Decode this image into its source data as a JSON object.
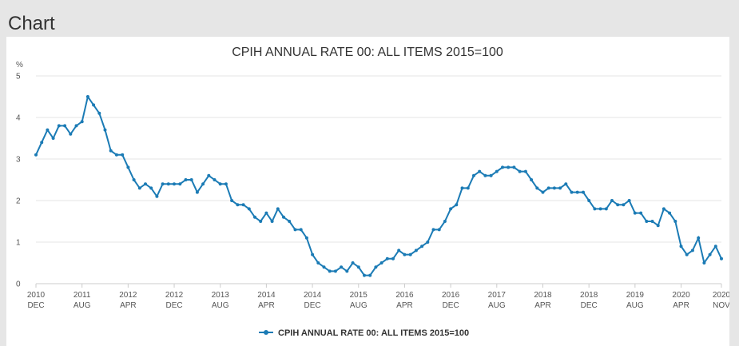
{
  "page": {
    "heading": "Chart"
  },
  "colors": {
    "series": "#1b7bb5",
    "grid": "#e6e6e6",
    "axis": "#cccccc"
  },
  "chart_data": {
    "type": "line",
    "title": "CPIH ANNUAL RATE 00: ALL ITEMS 2015=100",
    "ylabel": "%",
    "ylim": [
      0,
      5
    ],
    "yticks": [
      0,
      1,
      2,
      3,
      4,
      5
    ],
    "x_start": "2010 DEC",
    "x_end": "2020 NOV",
    "xticks": [
      {
        "top": "2010",
        "bottom": "DEC",
        "index": 0
      },
      {
        "top": "2011",
        "bottom": "AUG",
        "index": 8
      },
      {
        "top": "2012",
        "bottom": "APR",
        "index": 16
      },
      {
        "top": "2012",
        "bottom": "DEC",
        "index": 24
      },
      {
        "top": "2013",
        "bottom": "AUG",
        "index": 32
      },
      {
        "top": "2014",
        "bottom": "APR",
        "index": 40
      },
      {
        "top": "2014",
        "bottom": "DEC",
        "index": 48
      },
      {
        "top": "2015",
        "bottom": "AUG",
        "index": 56
      },
      {
        "top": "2016",
        "bottom": "APR",
        "index": 64
      },
      {
        "top": "2016",
        "bottom": "DEC",
        "index": 72
      },
      {
        "top": "2017",
        "bottom": "AUG",
        "index": 80
      },
      {
        "top": "2018",
        "bottom": "APR",
        "index": 88
      },
      {
        "top": "2018",
        "bottom": "DEC",
        "index": 96
      },
      {
        "top": "2019",
        "bottom": "AUG",
        "index": 104
      },
      {
        "top": "2020",
        "bottom": "APR",
        "index": 112
      },
      {
        "top": "2020",
        "bottom": "NOV",
        "index": 119
      }
    ],
    "grid": true,
    "legend_position": "bottom-center",
    "series": [
      {
        "name": "CPIH ANNUAL RATE 00: ALL ITEMS 2015=100",
        "values": [
          3.1,
          3.4,
          3.7,
          3.5,
          3.8,
          3.8,
          3.6,
          3.8,
          3.9,
          4.5,
          4.3,
          4.1,
          3.7,
          3.2,
          3.1,
          3.1,
          2.8,
          2.5,
          2.3,
          2.4,
          2.3,
          2.1,
          2.4,
          2.4,
          2.4,
          2.4,
          2.5,
          2.5,
          2.2,
          2.4,
          2.6,
          2.5,
          2.4,
          2.4,
          2.0,
          1.9,
          1.9,
          1.8,
          1.6,
          1.5,
          1.7,
          1.5,
          1.8,
          1.6,
          1.5,
          1.3,
          1.3,
          1.1,
          0.7,
          0.5,
          0.4,
          0.3,
          0.3,
          0.4,
          0.3,
          0.5,
          0.4,
          0.2,
          0.2,
          0.4,
          0.5,
          0.6,
          0.6,
          0.8,
          0.7,
          0.7,
          0.8,
          0.9,
          1.0,
          1.3,
          1.3,
          1.5,
          1.8,
          1.9,
          2.3,
          2.3,
          2.6,
          2.7,
          2.6,
          2.6,
          2.7,
          2.8,
          2.8,
          2.8,
          2.7,
          2.7,
          2.5,
          2.3,
          2.2,
          2.3,
          2.3,
          2.3,
          2.4,
          2.2,
          2.2,
          2.2,
          2.0,
          1.8,
          1.8,
          1.8,
          2.0,
          1.9,
          1.9,
          2.0,
          1.7,
          1.7,
          1.5,
          1.5,
          1.4,
          1.8,
          1.7,
          1.5,
          0.9,
          0.7,
          0.8,
          1.1,
          0.5,
          0.7,
          0.9,
          0.6
        ]
      }
    ]
  }
}
